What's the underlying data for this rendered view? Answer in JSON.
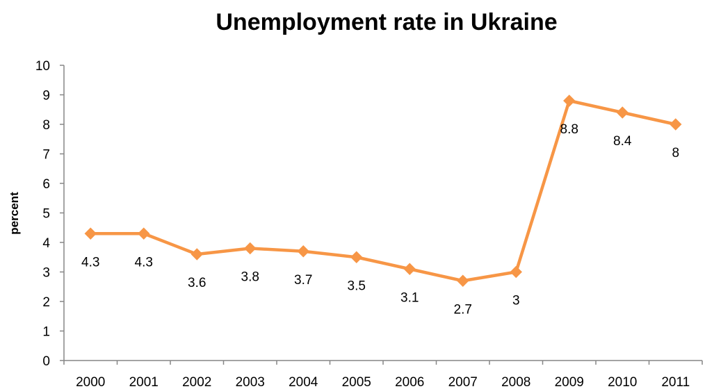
{
  "chart_data": {
    "type": "line",
    "title": "Unemployment rate in Ukraine",
    "xlabel": "",
    "ylabel": "percent",
    "categories": [
      "2000",
      "2001",
      "2002",
      "2003",
      "2004",
      "2005",
      "2006",
      "2007",
      "2008",
      "2009",
      "2010",
      "2011"
    ],
    "series": [
      {
        "values": [
          4.3,
          4.3,
          3.6,
          3.8,
          3.7,
          3.5,
          3.1,
          2.7,
          3,
          8.8,
          8.4,
          8
        ],
        "labels": [
          "4.3",
          "4.3",
          "3.6",
          "3.8",
          "3.7",
          "3.5",
          "3.1",
          "2.7",
          "3",
          "8.8",
          "8.4",
          "8"
        ],
        "color": "#F79646",
        "marker": "diamond"
      }
    ],
    "ylim": [
      0,
      10
    ],
    "yticks": [
      "0",
      "1",
      "2",
      "3",
      "4",
      "5",
      "6",
      "7",
      "8",
      "9",
      "10"
    ],
    "grid": false,
    "legend": "none"
  }
}
